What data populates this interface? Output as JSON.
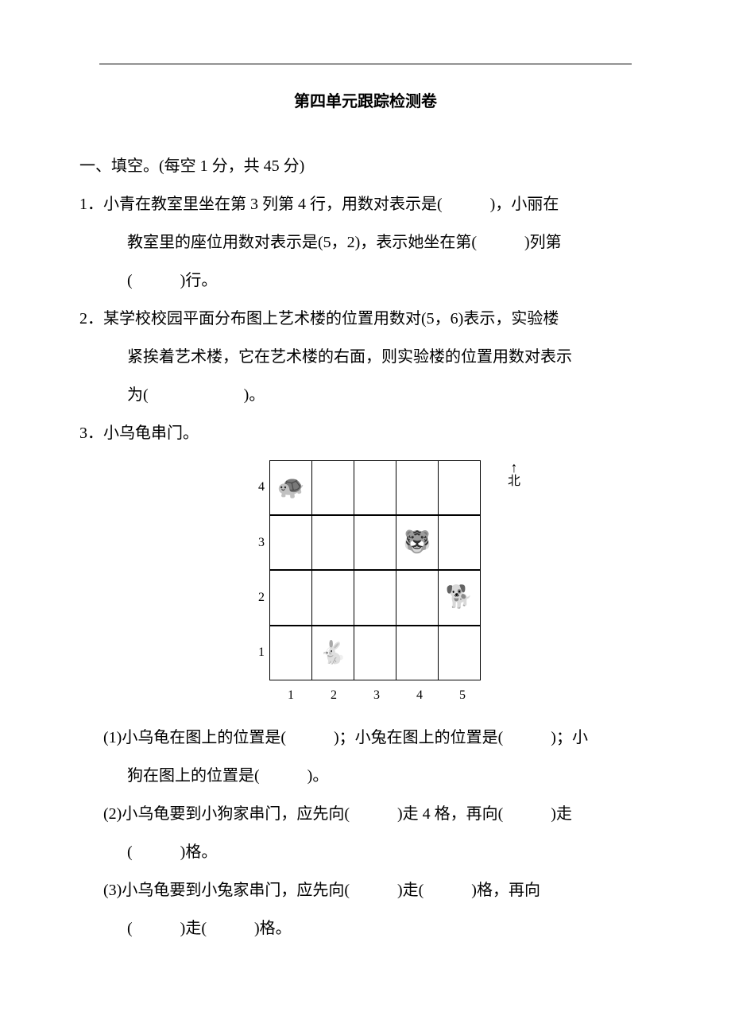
{
  "title": "第四单元跟踪检测卷",
  "section1": {
    "heading": "一、填空。(每空 1 分，共 45 分)",
    "q1_a": "1．小青在教室里坐在第 3 列第 4 行，用数对表示是(　　　)，小丽在",
    "q1_b": "教室里的座位用数对表示是(5，2)，表示她坐在第(　　　)列第",
    "q1_c": "(　　　)行。",
    "q2_a": "2．某学校校园平面分布图上艺术楼的位置用数对(5，6)表示，实验楼",
    "q2_b": "紧挨着艺术楼，它在艺术楼的右面，则实验楼的位置用数对表示",
    "q2_c": "为(　　　　　　)。",
    "q3_head": "3．小乌龟串门。",
    "q3_1_a": "(1)小乌龟在图上的位置是(　　　)；小兔在图上的位置是(　　　)；小",
    "q3_1_b": "狗在图上的位置是(　　　)。",
    "q3_2_a": "(2)小乌龟要到小狗家串门，应先向(　　　)走 4 格，再向(　　　)走",
    "q3_2_b": "(　　　)格。",
    "q3_3_a": "(3)小乌龟要到小兔家串门，应先向(　　　)走(　　　)格，再向",
    "q3_3_b": "(　　　)走(　　　)格。"
  },
  "grid": {
    "rows": [
      "4",
      "3",
      "2",
      "1"
    ],
    "cols": [
      "1",
      "2",
      "3",
      "4",
      "5"
    ],
    "north_label": "北",
    "animals": {
      "turtle": "🐢",
      "tiger": "🐯",
      "dog": "🐕",
      "rabbit": "🐇"
    }
  }
}
